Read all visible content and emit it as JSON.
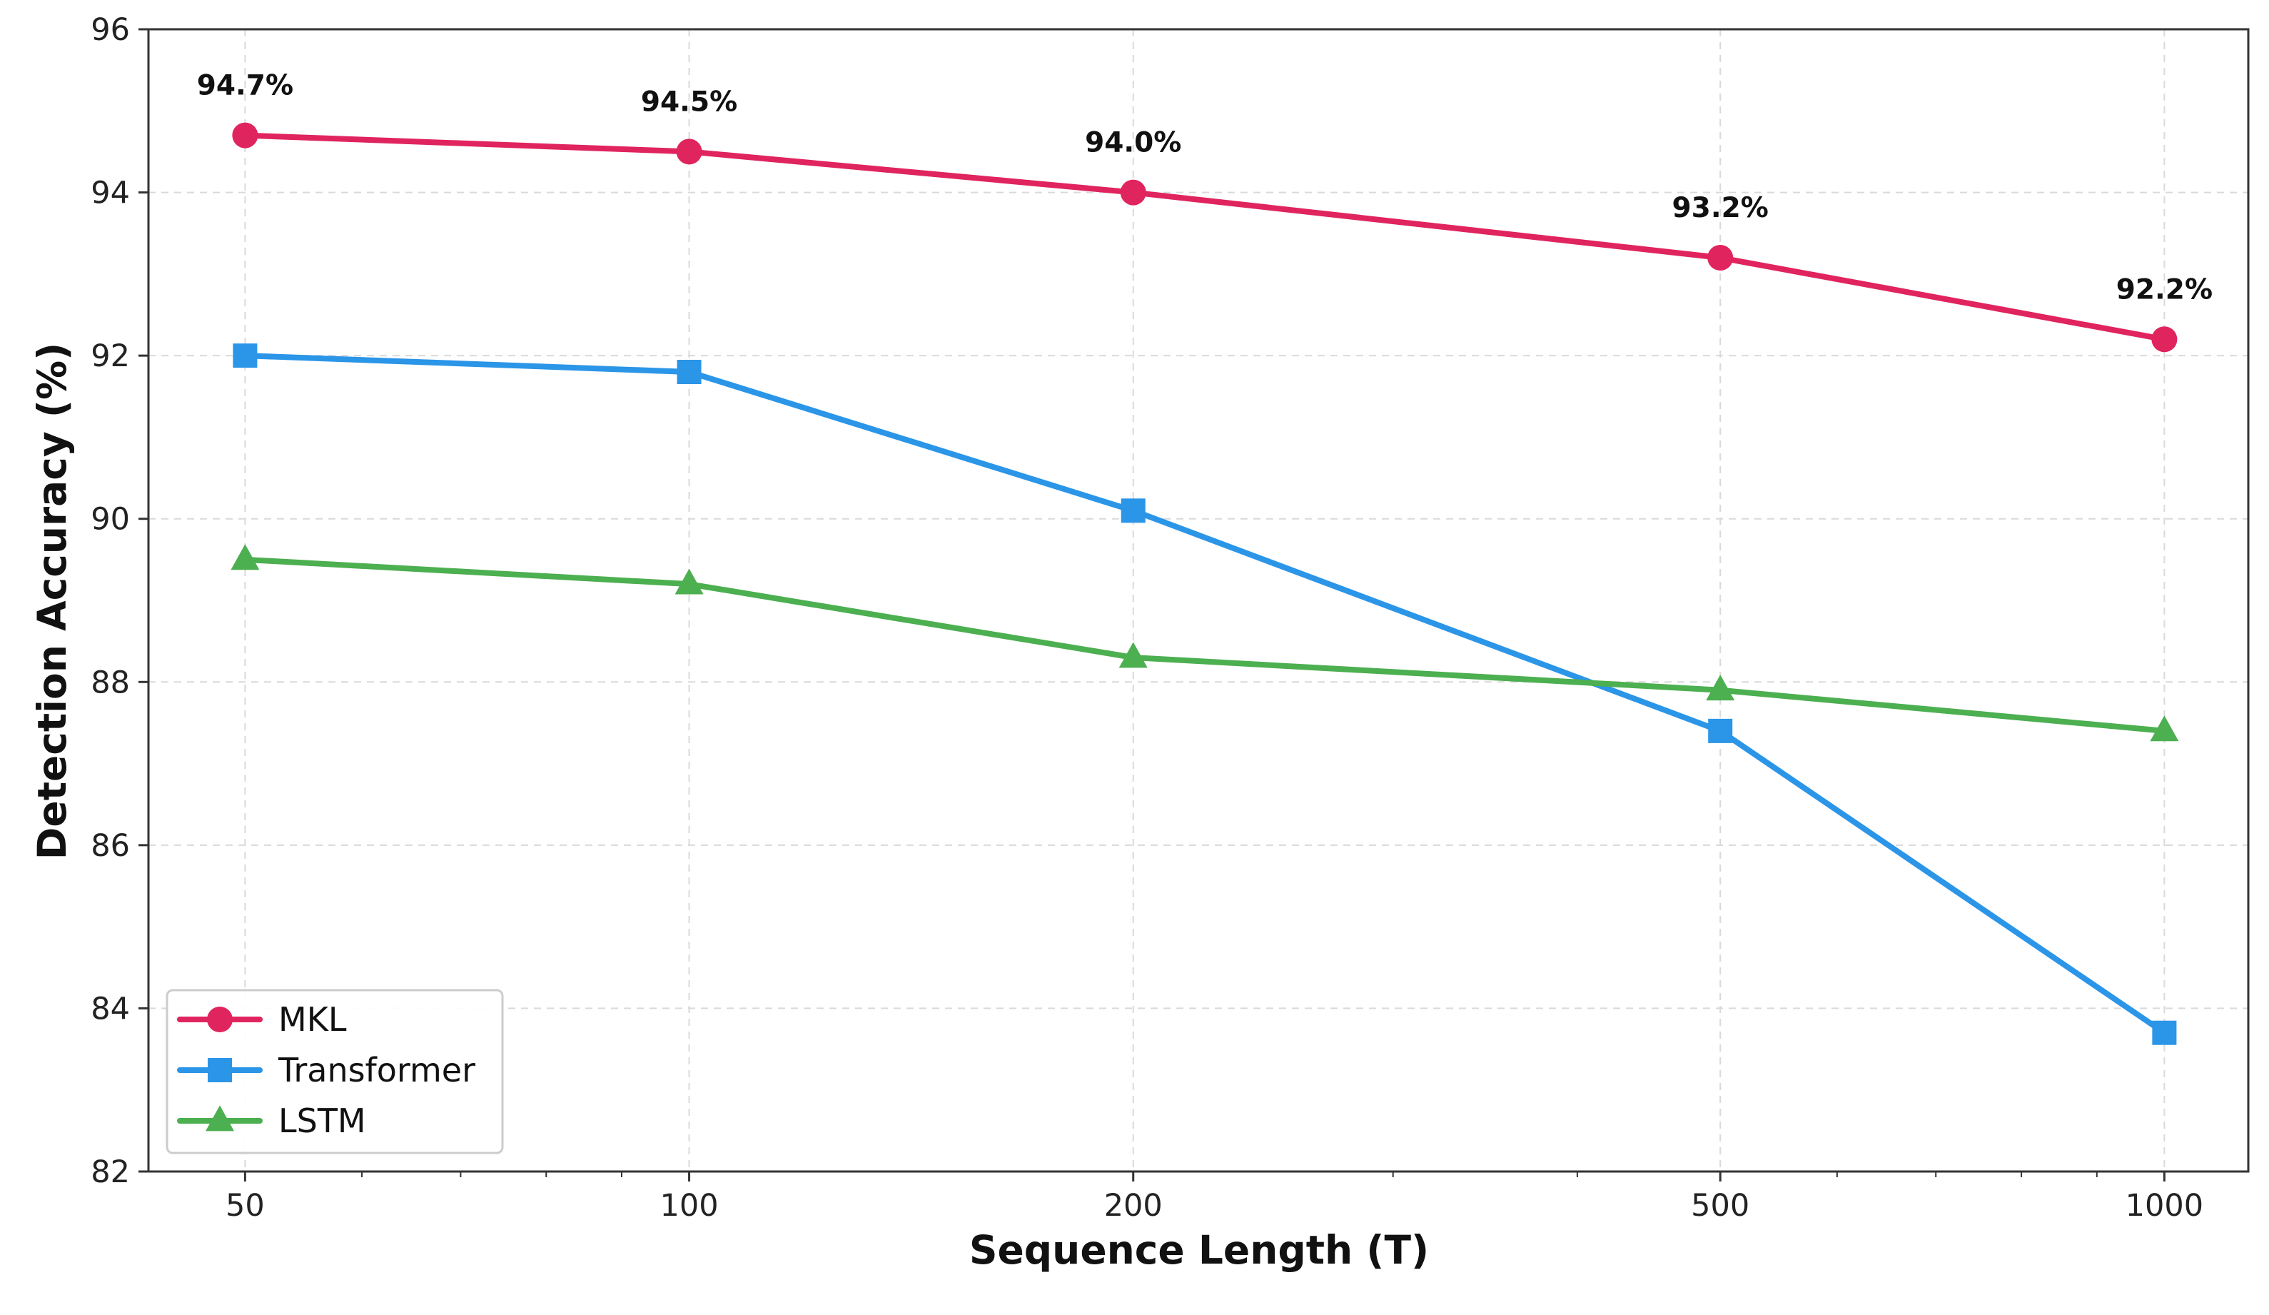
{
  "chart_data": {
    "type": "line",
    "xlabel": "Sequence Length (T)",
    "ylabel": "Detection Accuracy (%)",
    "x": [
      50,
      100,
      200,
      500,
      1000
    ],
    "x_tick_labels": [
      "50",
      "100",
      "200",
      "500",
      "1000"
    ],
    "x_scale": "log",
    "xlim": [
      43,
      1140
    ],
    "ylim": [
      82,
      96
    ],
    "y_ticks": [
      82,
      84,
      86,
      88,
      90,
      92,
      94,
      96
    ],
    "grid": true,
    "legend_position": "lower-left",
    "series": [
      {
        "name": "MKL",
        "marker": "circle",
        "color": "#e0245e",
        "values": [
          94.7,
          94.5,
          94.0,
          93.2,
          92.2
        ],
        "data_labels": [
          "94.7%",
          "94.5%",
          "94.0%",
          "93.2%",
          "92.2%"
        ]
      },
      {
        "name": "Transformer",
        "marker": "square",
        "color": "#2b95e8",
        "values": [
          92.0,
          91.8,
          90.1,
          87.4,
          83.7
        ]
      },
      {
        "name": "LSTM",
        "marker": "triangle",
        "color": "#4caf50",
        "values": [
          89.5,
          89.2,
          88.3,
          87.9,
          87.4
        ]
      }
    ]
  }
}
